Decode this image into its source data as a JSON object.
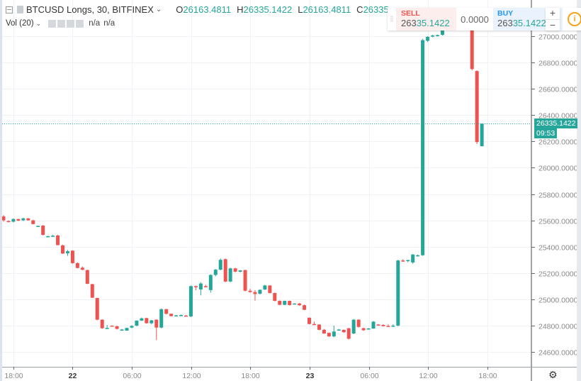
{
  "legend": {
    "symbol_title": "BTCUSD Longs, 30, BITFINEX",
    "o_label": "O",
    "o_value": "26163.4811",
    "h_label": "H",
    "h_value": "26335.1422",
    "l_label": "L",
    "l_value": "26163.4811",
    "c_label": "C",
    "c_value": "26335"
  },
  "volume": {
    "label": "Vol (20)",
    "value1": "n/a",
    "value2": "n/a"
  },
  "trade_panel": {
    "sell_label": "SELL",
    "sell_price_prefix": "263",
    "sell_price_main": "35.1422",
    "spread": "0.0000",
    "buy_label": "BUY",
    "buy_price_prefix": "263",
    "buy_price_main": "35.1422",
    "info_icon": "i"
  },
  "zoom_controls": {
    "plus": "+",
    "minus": "−"
  },
  "last_price_label": "26335.1422",
  "countdown": "09:53",
  "colors": {
    "up": "#26a69a",
    "down": "#ef5350",
    "grid": "#eef2f6",
    "axis_text": "#888888"
  },
  "chart_data": {
    "type": "candlestick",
    "title": "BTCUSD Longs, 30, BITFINEX",
    "interval": "30",
    "xlabel": "",
    "ylabel": "",
    "x_tick_labels": [
      "18:00",
      "22",
      "06:00",
      "12:00",
      "18:00",
      "23",
      "06:00",
      "12:00",
      "18:00"
    ],
    "y_tick_labels": [
      "27000.0000",
      "26800.0000",
      "26600.0000",
      "26400.0000",
      "26200.0000",
      "26000.0000",
      "25800.0000",
      "25600.0000",
      "25400.0000",
      "25200.0000",
      "25000.0000",
      "24800.0000",
      "24600.0000"
    ],
    "ylim": [
      24530,
      27250
    ],
    "last_price": 26335.1422,
    "grid": true,
    "candles": [
      [
        25630,
        25640,
        25590,
        25600
      ],
      [
        25595,
        25600,
        25585,
        25590
      ],
      [
        25590,
        25615,
        25585,
        25610
      ],
      [
        25610,
        25612,
        25595,
        25598
      ],
      [
        25600,
        25620,
        25595,
        25615
      ],
      [
        25615,
        25618,
        25598,
        25600
      ],
      [
        25600,
        25605,
        25570,
        25572
      ],
      [
        25555,
        25560,
        25550,
        25558
      ],
      [
        25560,
        25565,
        25485,
        25490
      ],
      [
        25475,
        25482,
        25470,
        25480
      ],
      [
        25480,
        25490,
        25475,
        25483
      ],
      [
        25485,
        25490,
        25410,
        25412
      ],
      [
        25410,
        25415,
        25345,
        25348
      ],
      [
        25350,
        25375,
        25330,
        25365
      ],
      [
        25370,
        25372,
        25270,
        25275
      ],
      [
        25275,
        25280,
        25235,
        25238
      ],
      [
        25240,
        25250,
        25220,
        25225
      ],
      [
        25222,
        25225,
        25115,
        25118
      ],
      [
        25115,
        25118,
        25010,
        25012
      ],
      [
        25010,
        25012,
        24840,
        24845
      ],
      [
        24845,
        24848,
        24775,
        24780
      ],
      [
        24780,
        24805,
        24775,
        24782
      ],
      [
        24800,
        24800,
        24795,
        24797
      ],
      [
        24795,
        24800,
        24770,
        24775
      ],
      [
        24765,
        24775,
        24763,
        24770
      ],
      [
        24762,
        24785,
        24760,
        24782
      ],
      [
        24785,
        24802,
        24780,
        24798
      ],
      [
        24800,
        24840,
        24795,
        24838
      ],
      [
        24838,
        24862,
        24835,
        24855
      ],
      [
        24857,
        24860,
        24815,
        24818
      ],
      [
        24818,
        24843,
        24810,
        24840
      ],
      [
        24845,
        24848,
        24690,
        24785
      ],
      [
        24785,
        24930,
        24780,
        24925
      ],
      [
        24925,
        24927,
        24885,
        24890
      ],
      [
        24890,
        24892,
        24870,
        24872
      ],
      [
        24873,
        24880,
        24870,
        24878
      ],
      [
        24878,
        24884,
        24875,
        24880
      ],
      [
        24876,
        24880,
        24870,
        24872
      ],
      [
        24870,
        25105,
        24865,
        25100
      ],
      [
        25100,
        25105,
        25070,
        25095
      ],
      [
        25075,
        25130,
        25030,
        25120
      ],
      [
        25100,
        25110,
        25090,
        25095
      ],
      [
        25070,
        25190,
        25050,
        25185
      ],
      [
        25185,
        25230,
        25175,
        25225
      ],
      [
        25225,
        25310,
        25220,
        25300
      ],
      [
        25305,
        25310,
        25130,
        25135
      ],
      [
        25135,
        25240,
        25130,
        25235
      ],
      [
        25235,
        25240,
        25205,
        25210
      ],
      [
        25210,
        25222,
        25205,
        25220
      ],
      [
        25222,
        25225,
        25060,
        25065
      ],
      [
        25065,
        25080,
        25050,
        25055
      ],
      [
        25055,
        25070,
        24990,
        25040
      ],
      [
        25042,
        25075,
        25038,
        25072
      ],
      [
        25075,
        25110,
        25070,
        25105
      ],
      [
        25105,
        25107,
        25045,
        25048
      ],
      [
        25048,
        25050,
        24985,
        24988
      ],
      [
        24988,
        24992,
        24955,
        24958
      ],
      [
        24958,
        24990,
        24955,
        24988
      ],
      [
        24988,
        24990,
        24952,
        24956
      ],
      [
        24965,
        24970,
        24962,
        24968
      ],
      [
        24968,
        24972,
        24950,
        24955
      ],
      [
        24955,
        24960,
        24918,
        24920
      ],
      [
        24860,
        24862,
        24810,
        24812
      ],
      [
        24812,
        24830,
        24805,
        24808
      ],
      [
        24808,
        24810,
        24765,
        24768
      ],
      [
        24768,
        24775,
        24738,
        24740
      ],
      [
        24745,
        24748,
        24715,
        24718
      ],
      [
        24718,
        24800,
        24712,
        24755
      ],
      [
        24768,
        24775,
        24763,
        24770
      ],
      [
        24768,
        24770,
        24745,
        24750
      ],
      [
        24780,
        24782,
        24695,
        24700
      ],
      [
        24740,
        24850,
        24735,
        24845
      ],
      [
        24845,
        24848,
        24785,
        24790
      ],
      [
        24780,
        24785,
        24760,
        24765
      ],
      [
        24775,
        24782,
        24770,
        24778
      ],
      [
        24778,
        24835,
        24775,
        24830
      ],
      [
        24808,
        24812,
        24800,
        24805
      ],
      [
        24805,
        24810,
        24793,
        24796
      ],
      [
        24798,
        24810,
        24792,
        24794
      ],
      [
        24793,
        24810,
        24790,
        24800
      ],
      [
        24800,
        25300,
        24795,
        25295
      ],
      [
        25295,
        25305,
        25285,
        25290
      ],
      [
        25290,
        25300,
        25282,
        25298
      ],
      [
        25280,
        25345,
        25270,
        25340
      ],
      [
        25330,
        25340,
        25325,
        25335
      ],
      [
        25335,
        26980,
        25330,
        26970
      ],
      [
        26965,
        27000,
        26955,
        26995
      ],
      [
        27000,
        27010,
        26992,
        27005
      ],
      [
        27005,
        27012,
        26998,
        27008
      ],
      [
        27010,
        27080,
        27005,
        27075
      ],
      [
        27078,
        27082,
        27070,
        27080
      ],
      [
        27082,
        27100,
        27075,
        27095
      ],
      [
        27095,
        27110,
        27085,
        27105
      ],
      [
        27080,
        27090,
        27050,
        27060
      ],
      [
        27070,
        27090,
        27065,
        27085
      ],
      [
        27120,
        27135,
        26740,
        26750
      ],
      [
        26735,
        26740,
        26180,
        26195
      ],
      [
        26163.4811,
        26335.1422,
        26163.4811,
        26335.1422
      ]
    ]
  }
}
